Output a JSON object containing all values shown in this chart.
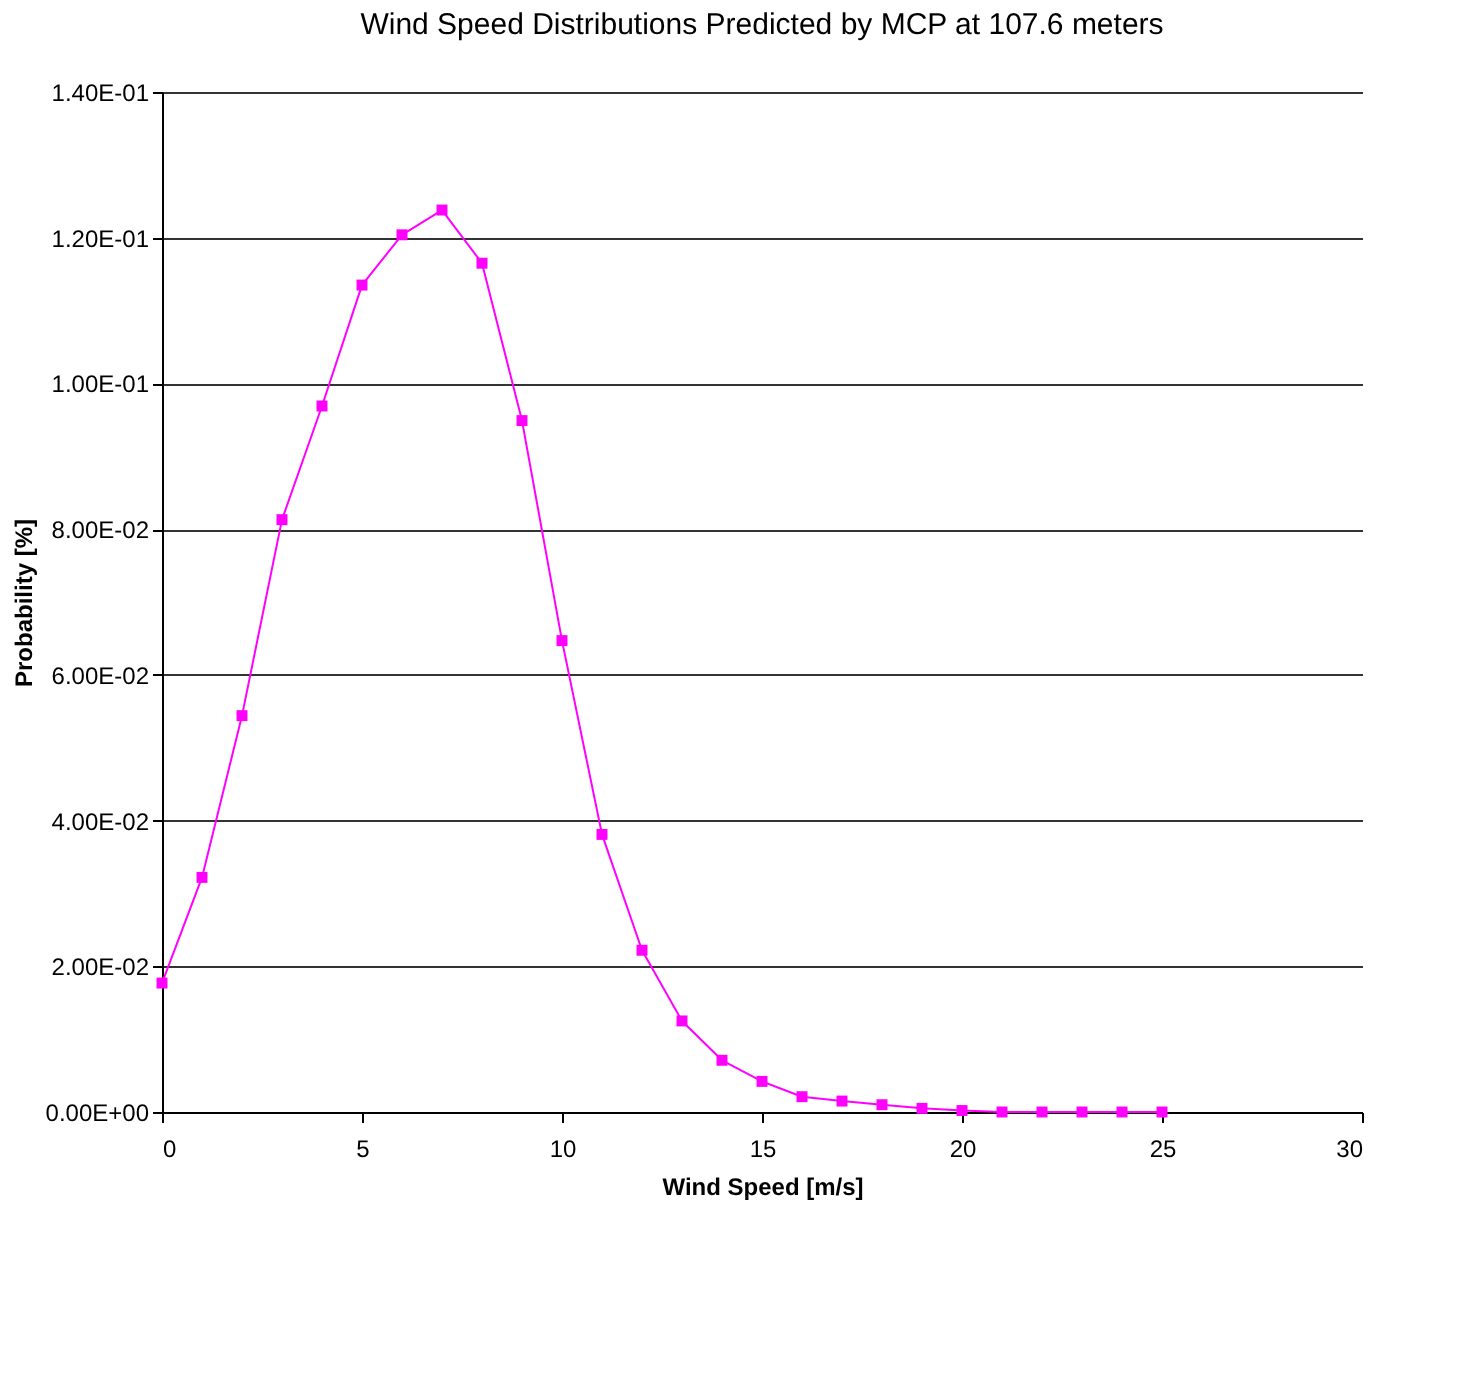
{
  "chart_data": {
    "type": "line",
    "title": "Wind Speed Distributions Predicted by MCP at 107.6 meters",
    "xlabel": "Wind Speed [m/s]",
    "ylabel": "Probability [%]",
    "x": [
      0,
      1,
      2,
      3,
      4,
      5,
      6,
      7,
      8,
      9,
      10,
      11,
      12,
      13,
      14,
      15,
      16,
      17,
      18,
      19,
      20,
      21,
      22,
      23,
      24,
      25
    ],
    "series": [
      {
        "color": "#ff00ff",
        "values": [
          0.0177,
          0.0322,
          0.0544,
          0.0813,
          0.0969,
          0.1135,
          0.1204,
          0.1238,
          0.1165,
          0.0949,
          0.0647,
          0.0381,
          0.0222,
          0.0125,
          0.0071,
          0.0042,
          0.0021,
          0.0015,
          0.001,
          0.0005,
          0.0002,
          0,
          0,
          0,
          0,
          0
        ]
      }
    ],
    "xlim": [
      0,
      30
    ],
    "xticks": [
      0,
      5,
      10,
      15,
      20,
      25,
      30
    ],
    "ylim": [
      0,
      0.14
    ],
    "yticks": [
      {
        "value": 0,
        "label": "0.00E+00"
      },
      {
        "value": 0.02,
        "label": "2.00E-02"
      },
      {
        "value": 0.04,
        "label": "4.00E-02"
      },
      {
        "value": 0.06,
        "label": "6.00E-02"
      },
      {
        "value": 0.08,
        "label": "8.00E-02"
      },
      {
        "value": 0.1,
        "label": "1.00E-01"
      },
      {
        "value": 0.12,
        "label": "1.20E-01"
      },
      {
        "value": 0.14,
        "label": "1.40E-01"
      }
    ],
    "grid": "y",
    "marker": "square",
    "line_style": "solid"
  }
}
